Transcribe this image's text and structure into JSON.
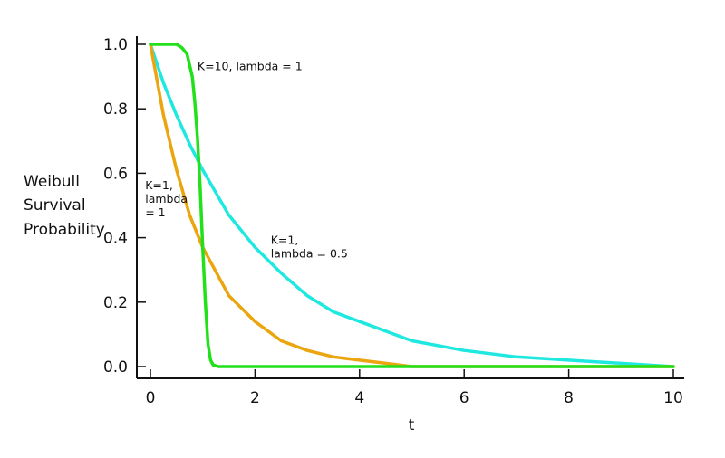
{
  "chart_data": {
    "type": "line",
    "title": "",
    "xlabel": "t",
    "ylabel_lines": [
      "Weibull",
      "Survival",
      "Probability"
    ],
    "xlim": [
      0,
      10
    ],
    "ylim": [
      0,
      1
    ],
    "x_ticks": [
      "0",
      "2",
      "4",
      "6",
      "8",
      "10"
    ],
    "y_ticks": [
      "0.0",
      "0.2",
      "0.4",
      "0.6",
      "0.8",
      "1.0"
    ],
    "grid": false,
    "legend": "none",
    "series": [
      {
        "color": "#1fe8e0",
        "x": [
          0,
          0.25,
          0.5,
          0.75,
          1,
          1.5,
          2,
          2.5,
          3,
          3.5,
          4,
          5,
          6,
          7,
          8,
          9,
          10
        ],
        "y": [
          1.0,
          0.88,
          0.78,
          0.69,
          0.61,
          0.47,
          0.37,
          0.29,
          0.22,
          0.17,
          0.14,
          0.08,
          0.05,
          0.03,
          0.02,
          0.01,
          0.0
        ]
      },
      {
        "color": "#eba50f",
        "x": [
          0,
          0.25,
          0.5,
          0.75,
          1,
          1.5,
          2,
          2.5,
          3,
          3.5,
          4,
          4.5,
          5,
          6,
          7,
          8,
          9,
          10
        ],
        "y": [
          1.0,
          0.78,
          0.61,
          0.47,
          0.37,
          0.22,
          0.14,
          0.08,
          0.05,
          0.03,
          0.02,
          0.01,
          0.0,
          0.0,
          0.0,
          0.0,
          0.0,
          0.0
        ]
      },
      {
        "color": "#22e01a",
        "x": [
          0,
          0.5,
          0.6,
          0.7,
          0.8,
          0.85,
          0.9,
          0.95,
          1.0,
          1.05,
          1.1,
          1.15,
          1.2,
          1.3,
          1.5,
          2,
          4,
          6,
          8,
          10
        ],
        "y": [
          1.0,
          1.0,
          0.99,
          0.97,
          0.9,
          0.82,
          0.71,
          0.56,
          0.37,
          0.2,
          0.07,
          0.02,
          0.005,
          0.0,
          0.0,
          0.0,
          0.0,
          0.0,
          0.0,
          0.0
        ]
      }
    ],
    "annotations": [
      {
        "lines": [
          "K=10, lambda = 1"
        ],
        "x": 0.9,
        "y": 0.92
      },
      {
        "lines": [
          "K=1,",
          "lambda",
          "= 1"
        ],
        "x": -0.1,
        "y": 0.55
      },
      {
        "lines": [
          "K=1,",
          "lambda = 0.5"
        ],
        "x": 2.3,
        "y": 0.38
      }
    ]
  }
}
